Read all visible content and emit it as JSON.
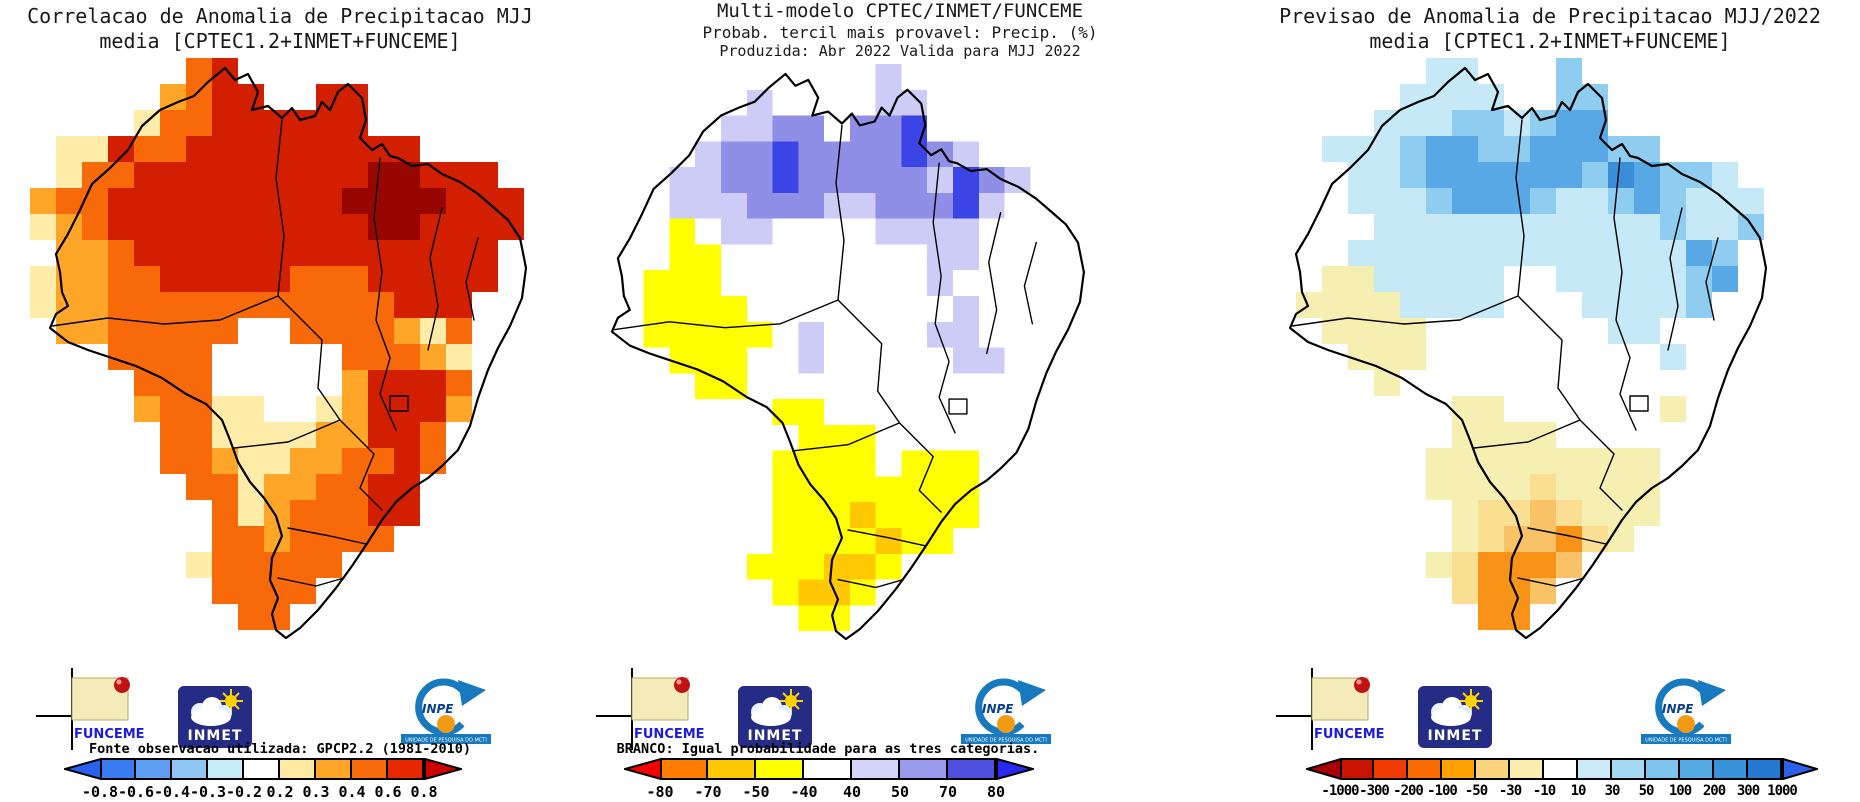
{
  "figure": {
    "background": "#ffffff"
  },
  "logos": {
    "funceme_label": "FUNCEME",
    "inmet_label": "INMET",
    "inpe_label": "INPE",
    "inpe_banner": "UNIDADE DE PESQUISA DO MCTI",
    "funceme_color": "#1a1ae6",
    "inmet_bg": "#252c85",
    "inpe_blue": "#1779c0",
    "inpe_orange": "#f59a13"
  },
  "panels": [
    {
      "name": "correlation",
      "title_lines": [
        "Correlacao de Anomalia de Precipitacao MJJ",
        "media [CPTEC1.2+INMET+FUNCEME]"
      ],
      "colorbar": {
        "caption": "Fonte observacao utilizada: GPCP2.2 (1981-2010)",
        "ticks": [
          "-0.8",
          "-0.6",
          "-0.4",
          "-0.3",
          "-0.2",
          "0.2",
          "0.3",
          "0.4",
          "0.6",
          "0.8"
        ],
        "segments": [
          "#3a7bf2",
          "#5e9ef2",
          "#8fc6f4",
          "#c5eef8",
          "#ffffff",
          "#ffeaa4",
          "#ffa527",
          "#f8690a",
          "#e82900"
        ],
        "arrow_left": "#2a60ee",
        "arrow_right": "#cf0000"
      },
      "grid": {
        "cell": 26,
        "palette": {
          "Y": "#ffeca8",
          "G": "#ffa527",
          "O": "#f8690a",
          "R": "#d21f00",
          "D": "#970700",
          "W": "#ffffff"
        },
        "rows": [
          "......OR...........",
          ".....GORR..RR......",
          "....YOORRRRRR......",
          ".YYROORRRRRRRRR....",
          ".YOORRRRRRRRRDDRRR.",
          "GOORRRRRRRRRDDDDRRR",
          "YGORRRRRRRRRRDDRRRR",
          ".GGORRRRRRRRRRRRRR.",
          "YGGOORRRRROOORRRRR.",
          "YGGOOOOOOOOOOORRR..",
          ".GGOOOOOWWOOOOGYO..",
          "...OOOOWWWWWOOOGY..",
          "....OOOWWWWWGRRRO..",
          "....GOOYYWWYGRRRG..",
          ".....OOYYYYGGRRO...",
          ".....OOGYYGGOORO...",
          "......OOYGGOORR....",
          ".......OYGOOORR....",
          ".......OOGOOOO.....",
          "......YOOOOO.......",
          ".......OOOO........",
          "........OO........."
        ]
      }
    },
    {
      "name": "probability",
      "title_lines": [
        "Multi-modelo CPTEC/INMET/FUNCEME",
        "Probab. tercil mais provavel: Precip. (%)",
        "Produzida: Abr 2022  Valida para MJJ 2022"
      ],
      "colorbar": {
        "caption": "BRANCO: Igual probabilidade para as tres categorias.",
        "ticks": [
          "-80",
          "-70",
          "-50",
          "-40",
          "40",
          "50",
          "70",
          "80"
        ],
        "segments": [
          "#ff7d00",
          "#ffc800",
          "#ffff00",
          "#ffffff",
          "#d4d4f8",
          "#9b9bee",
          "#4f4fe0"
        ],
        "arrow_left": "#f50000",
        "arrow_right": "#2828f0"
      },
      "grid": {
        "cell": 26,
        "palette": {
          "W": "#ffffff",
          "L": "#ccccf6",
          "M": "#8f8fe8",
          "B": "#3b45e6",
          "X": "#ffff00",
          "G": "#ffc800"
        },
        "rows": [
          "......WW...L.......",
          ".....WLWW..LL......",
          "....WLLMMWMMB......",
          ".WWWLMMBMMMMBML....",
          ".WWLLMMBMMMMMLBMLW.",
          "WWWLLLMMMLLMMMBLWWW",
          "WWWXWLLWWWWLLLLWWWW",
          ".WWXXWWWWWWWWLLWWW.",
          "WWXXXWWWWWWWWLWWWW.",
          "WWXXXXWWWWWWWWLWW..",
          ".WXXXXXWLWWWWLLWW..",
          "...XXXWWLWWWWWLLW..",
          "....XXWWWWWWWWWWW..",
          "....WWWXXWWWWWWWW..",
          ".....WWWXXXWWWWW...",
          ".....WWXXXXWXXXW...",
          "......WXXXXXXXX....",
          ".......XXXGXXXX....",
          ".......XXXXGXX.....",
          "......XXXGGX.......",
          ".......XGGX........",
          "........XX........."
        ]
      }
    },
    {
      "name": "forecast",
      "title_lines": [
        "Previsao de Anomalia de Precipitacao MJJ/2022",
        "media [CPTEC1.2+INMET+FUNCEME]"
      ],
      "colorbar": {
        "caption": "",
        "ticks": [
          "-1000",
          "-300",
          "-200",
          "-100",
          "-50",
          "-30",
          "-10",
          "10",
          "30",
          "50",
          "100",
          "200",
          "300",
          "1000"
        ],
        "segments": [
          "#c81400",
          "#f23b00",
          "#fb6c00",
          "#ffa200",
          "#fed37d",
          "#fdecb0",
          "#ffffff",
          "#c9ecf8",
          "#a5daf4",
          "#7fc4ee",
          "#55aae6",
          "#3892da",
          "#2579d0"
        ],
        "arrow_left": "#aa0000",
        "arrow_right": "#2b62e8"
      },
      "grid": {
        "cell": 26,
        "palette": {
          "W": "#ffffff",
          "C": "#c5e9f7",
          "A": "#8ecdf0",
          "B": "#58a8e6",
          "D": "#3a8ed8",
          "Y": "#f6efb2",
          "T": "#fade92",
          "G": "#fac267",
          "O": "#f99318"
        },
        "rows": [
          "......CC...A.......",
          ".....CCCC..AA......",
          "....CCCAACABB......",
          ".WCCCABBAABBBAA....",
          ".WWCCABBBBBBADBAAC.",
          "WWWCCCABBBACCABACCC",
          "WWWWCCCCCCCCCCCACCA",
          ".WWCCCCCCCCCCCCCBA.",
          "WWYYCCCCCWWCCCCCAB.",
          "WYYYYCCCCWWWCCCCA..",
          ".WYYYYWWWWWWWCCWW..",
          "...YYYWWWWWWWWWCW..",
          "....YWWWWWWWWWWWW..",
          "....WWWYYWWWWWWYW..",
          ".....WWYYYYWWWWW...",
          ".....WYYYYYYYYYW...",
          "......YYYYTYYYY....",
          ".......YTTGTYYY....",
          ".......YTGGOTY.....",
          "......YTOOOG.......",
          ".......TOOG........",
          "........OO........."
        ]
      }
    }
  ],
  "chart_data": [
    {
      "type": "heatmap",
      "title": "Correlacao de Anomalia de Precipitacao MJJ media [CPTEC1.2+INMET+FUNCEME]",
      "legend_position": "bottom",
      "scale_ticks": [
        -0.8,
        -0.6,
        -0.4,
        -0.3,
        -0.2,
        0.2,
        0.3,
        0.4,
        0.6,
        0.8
      ],
      "scale_unit": "correlation coefficient",
      "annotation": "Fonte observacao utilizada: GPCP2.2 (1981-2010)",
      "summary": "Gridded correlation map over Brazil: 0.6-0.8+ (red/dark red) across the north and northeast, 0.3-0.6 (orange) in the west/center-west and south, 0.2-0.3 (pale yellow) patches on western and southern edges, below 0.2 (white) in the central-east interior."
    },
    {
      "type": "heatmap",
      "title": "Multi-modelo CPTEC/INMET/FUNCEME - Probab. tercil mais provavel: Precip. (%) - Produzida: Abr 2022, Valida para MJJ 2022",
      "legend_position": "bottom",
      "scale_ticks": [
        -80,
        -70,
        -50,
        -40,
        40,
        50,
        70,
        80
      ],
      "scale_unit": "percent probability (negative = dry tercile, positive = wet tercile)",
      "annotation": "BRANCO: Igual probabilidade para as tres categorias.",
      "summary": "Wet-tercile probabilities 40-80% (lavender to blue) along the far north; dry-tercile probabilities 40-70% (yellow to gold) in southwestern Amazonia and over the southern states; white (equal probability) elsewhere."
    },
    {
      "type": "heatmap",
      "title": "Previsao de Anomalia de Precipitacao MJJ/2022 media [CPTEC1.2+INMET+FUNCEME]",
      "legend_position": "bottom",
      "scale_ticks": [
        -1000,
        -300,
        -200,
        -100,
        -50,
        -30,
        -10,
        10,
        30,
        50,
        100,
        200,
        300,
        1000
      ],
      "scale_unit": "precipitation anomaly (mm)",
      "annotation": "",
      "summary": "Positive anomalies 10-200 mm (pale cyan to blue) across the north and along the northeast coast; negative anomalies -10 to -50 mm (pale yellow) in southwest Amazonia; -30 to -200 mm (tan/gold/orange) over the southern states; near zero (white) in the central interior."
    }
  ]
}
